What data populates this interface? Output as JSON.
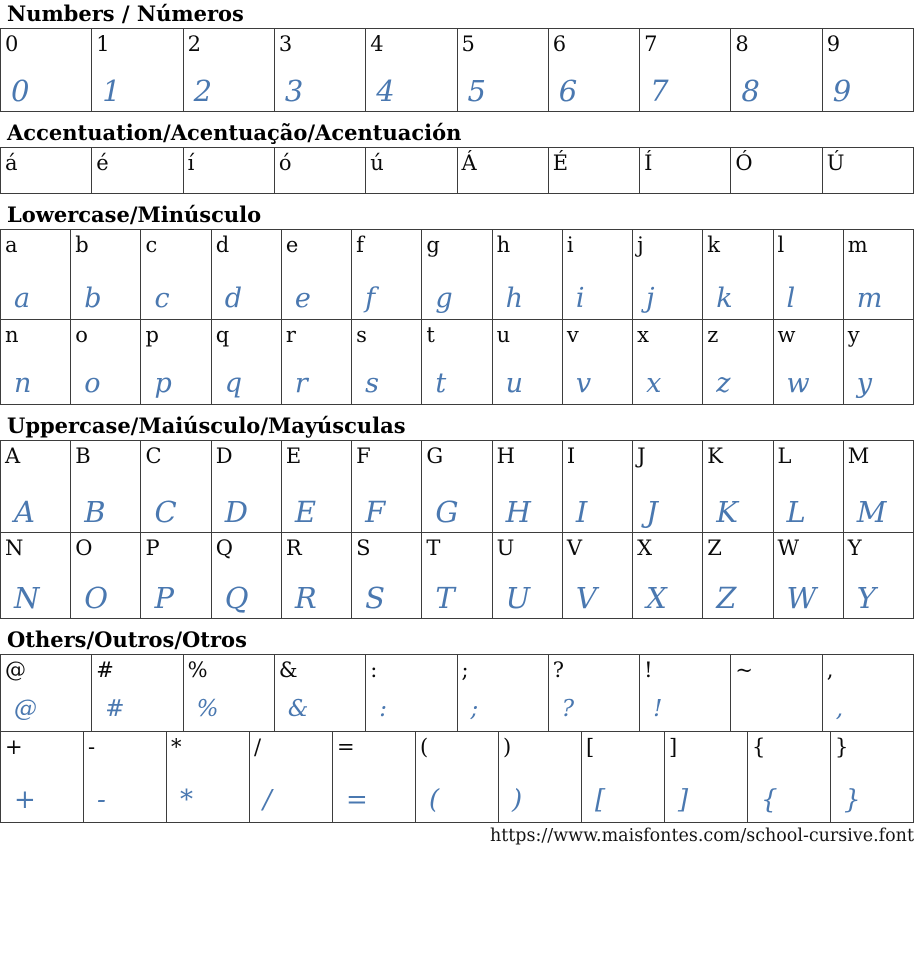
{
  "footer": {
    "url": "https://www.maisfontes.com/school-cursive.font"
  },
  "sections": [
    {
      "title": "Numbers / Números",
      "rows": [
        [
          {
            "p": "0",
            "c": "0"
          },
          {
            "p": "1",
            "c": "1"
          },
          {
            "p": "2",
            "c": "2"
          },
          {
            "p": "3",
            "c": "3"
          },
          {
            "p": "4",
            "c": "4"
          },
          {
            "p": "5",
            "c": "5"
          },
          {
            "p": "6",
            "c": "6"
          },
          {
            "p": "7",
            "c": "7"
          },
          {
            "p": "8",
            "c": "8"
          },
          {
            "p": "9",
            "c": "9"
          }
        ]
      ]
    },
    {
      "title": "Accentuation/Acentuação/Acentuación",
      "rows": [
        [
          {
            "p": "á",
            "c": ""
          },
          {
            "p": "é",
            "c": ""
          },
          {
            "p": "í",
            "c": ""
          },
          {
            "p": "ó",
            "c": ""
          },
          {
            "p": "ú",
            "c": ""
          },
          {
            "p": "Á",
            "c": ""
          },
          {
            "p": "É",
            "c": ""
          },
          {
            "p": "Í",
            "c": ""
          },
          {
            "p": "Ó",
            "c": ""
          },
          {
            "p": "Ú",
            "c": ""
          }
        ]
      ]
    },
    {
      "title": "Lowercase/Minúsculo",
      "rows": [
        [
          {
            "p": "a",
            "c": "a"
          },
          {
            "p": "b",
            "c": "b"
          },
          {
            "p": "c",
            "c": "c"
          },
          {
            "p": "d",
            "c": "d"
          },
          {
            "p": "e",
            "c": "e"
          },
          {
            "p": "f",
            "c": "f"
          },
          {
            "p": "g",
            "c": "g"
          },
          {
            "p": "h",
            "c": "h"
          },
          {
            "p": "i",
            "c": "i"
          },
          {
            "p": "j",
            "c": "j"
          },
          {
            "p": "k",
            "c": "k"
          },
          {
            "p": "l",
            "c": "l"
          },
          {
            "p": "m",
            "c": "m"
          }
        ],
        [
          {
            "p": "n",
            "c": "n"
          },
          {
            "p": "o",
            "c": "o"
          },
          {
            "p": "p",
            "c": "p"
          },
          {
            "p": "q",
            "c": "q"
          },
          {
            "p": "r",
            "c": "r"
          },
          {
            "p": "s",
            "c": "s"
          },
          {
            "p": "t",
            "c": "t"
          },
          {
            "p": "u",
            "c": "u"
          },
          {
            "p": "v",
            "c": "v"
          },
          {
            "p": "x",
            "c": "x"
          },
          {
            "p": "z",
            "c": "z"
          },
          {
            "p": "w",
            "c": "w"
          },
          {
            "p": "y",
            "c": "y"
          }
        ]
      ]
    },
    {
      "title": "Uppercase/Maiúsculo/Mayúsculas",
      "rows": [
        [
          {
            "p": "A",
            "c": "A"
          },
          {
            "p": "B",
            "c": "B"
          },
          {
            "p": "C",
            "c": "C"
          },
          {
            "p": "D",
            "c": "D"
          },
          {
            "p": "E",
            "c": "E"
          },
          {
            "p": "F",
            "c": "F"
          },
          {
            "p": "G",
            "c": "G"
          },
          {
            "p": "H",
            "c": "H"
          },
          {
            "p": "I",
            "c": "I"
          },
          {
            "p": "J",
            "c": "J"
          },
          {
            "p": "K",
            "c": "K"
          },
          {
            "p": "L",
            "c": "L"
          },
          {
            "p": "M",
            "c": "M"
          }
        ],
        [
          {
            "p": "N",
            "c": "N"
          },
          {
            "p": "O",
            "c": "O"
          },
          {
            "p": "P",
            "c": "P"
          },
          {
            "p": "Q",
            "c": "Q"
          },
          {
            "p": "R",
            "c": "R"
          },
          {
            "p": "S",
            "c": "S"
          },
          {
            "p": "T",
            "c": "T"
          },
          {
            "p": "U",
            "c": "U"
          },
          {
            "p": "V",
            "c": "V"
          },
          {
            "p": "X",
            "c": "X"
          },
          {
            "p": "Z",
            "c": "Z"
          },
          {
            "p": "W",
            "c": "W"
          },
          {
            "p": "Y",
            "c": "Y"
          }
        ]
      ]
    },
    {
      "title": "Others/Outros/Otros",
      "rows": [
        [
          {
            "p": "@",
            "c": "@"
          },
          {
            "p": "#",
            "c": "#"
          },
          {
            "p": "%",
            "c": "%"
          },
          {
            "p": "&",
            "c": "&"
          },
          {
            "p": ":",
            "c": ":"
          },
          {
            "p": ";",
            "c": ";"
          },
          {
            "p": "?",
            "c": "?"
          },
          {
            "p": "!",
            "c": "!"
          },
          {
            "p": "~",
            "c": ""
          },
          {
            "p": ",",
            "c": ","
          }
        ],
        [
          {
            "p": "+",
            "c": "+"
          },
          {
            "p": "-",
            "c": "-"
          },
          {
            "p": "*",
            "c": "*"
          },
          {
            "p": "/",
            "c": "/"
          },
          {
            "p": "=",
            "c": "="
          },
          {
            "p": "(",
            "c": "("
          },
          {
            "p": ")",
            "c": ")"
          },
          {
            "p": "[",
            "c": "["
          },
          {
            "p": "]",
            "c": "]"
          },
          {
            "p": "{",
            "c": "{"
          },
          {
            "p": "}",
            "c": "}"
          }
        ]
      ]
    }
  ]
}
